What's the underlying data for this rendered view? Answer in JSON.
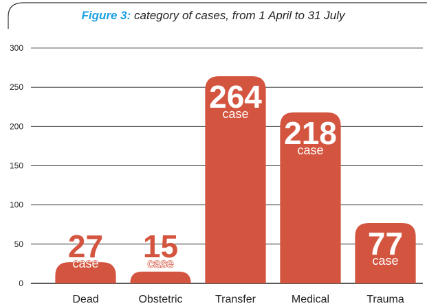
{
  "chart_data": {
    "type": "bar",
    "figure_label": "Figure 3:",
    "title": "category of cases, from 1 April to 31 July",
    "categories": [
      "Dead",
      "Obstetric",
      "Transfer",
      "Medical",
      "Trauma"
    ],
    "values": [
      27,
      15,
      264,
      218,
      77
    ],
    "value_unit": "case",
    "color": "#d4553f",
    "ylim": [
      0,
      300
    ],
    "yticks": [
      0,
      50,
      100,
      150,
      200,
      250,
      300
    ],
    "grid": true
  }
}
